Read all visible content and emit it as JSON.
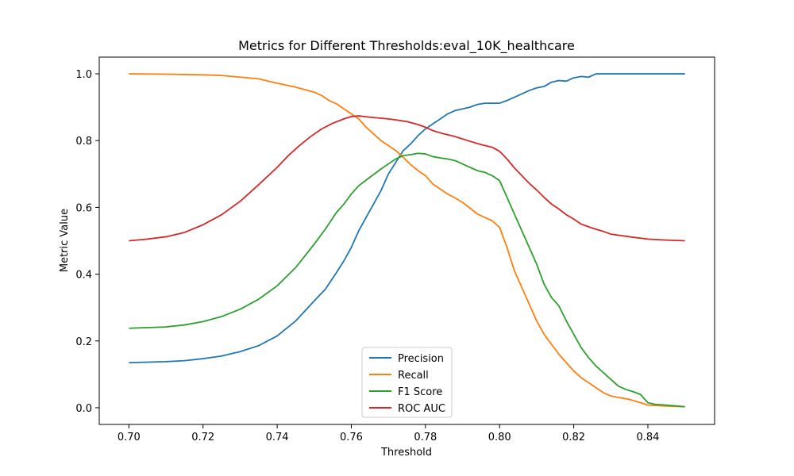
{
  "chart_data": {
    "type": "line",
    "title": "Metrics for Different Thresholds:eval_10K_healthcare",
    "xlabel": "Threshold",
    "ylabel": "Metric Value",
    "xlim": [
      0.692,
      0.858
    ],
    "ylim": [
      -0.05,
      1.05
    ],
    "xticks": [
      0.7,
      0.72,
      0.74,
      0.76,
      0.78,
      0.8,
      0.82,
      0.84
    ],
    "xtick_labels": [
      "0.70",
      "0.72",
      "0.74",
      "0.76",
      "0.78",
      "0.80",
      "0.82",
      "0.84"
    ],
    "yticks": [
      0.0,
      0.2,
      0.4,
      0.6,
      0.8,
      1.0
    ],
    "ytick_labels": [
      "0.0",
      "0.2",
      "0.4",
      "0.6",
      "0.8",
      "1.0"
    ],
    "grid": false,
    "legend_position": "bottom-center",
    "series": [
      {
        "name": "Precision",
        "color": "#1f77b4",
        "points": [
          [
            0.7,
            0.135
          ],
          [
            0.71,
            0.138
          ],
          [
            0.715,
            0.141
          ],
          [
            0.72,
            0.147
          ],
          [
            0.725,
            0.155
          ],
          [
            0.73,
            0.168
          ],
          [
            0.735,
            0.186
          ],
          [
            0.74,
            0.215
          ],
          [
            0.745,
            0.26
          ],
          [
            0.75,
            0.32
          ],
          [
            0.753,
            0.355
          ],
          [
            0.756,
            0.405
          ],
          [
            0.758,
            0.44
          ],
          [
            0.76,
            0.48
          ],
          [
            0.762,
            0.53
          ],
          [
            0.765,
            0.59
          ],
          [
            0.768,
            0.65
          ],
          [
            0.77,
            0.7
          ],
          [
            0.772,
            0.735
          ],
          [
            0.774,
            0.77
          ],
          [
            0.776,
            0.79
          ],
          [
            0.778,
            0.815
          ],
          [
            0.78,
            0.835
          ],
          [
            0.782,
            0.85
          ],
          [
            0.784,
            0.865
          ],
          [
            0.786,
            0.88
          ],
          [
            0.788,
            0.89
          ],
          [
            0.79,
            0.895
          ],
          [
            0.792,
            0.9
          ],
          [
            0.794,
            0.908
          ],
          [
            0.796,
            0.912
          ],
          [
            0.798,
            0.912
          ],
          [
            0.8,
            0.912
          ],
          [
            0.802,
            0.92
          ],
          [
            0.804,
            0.93
          ],
          [
            0.806,
            0.94
          ],
          [
            0.808,
            0.95
          ],
          [
            0.81,
            0.958
          ],
          [
            0.812,
            0.962
          ],
          [
            0.814,
            0.975
          ],
          [
            0.816,
            0.98
          ],
          [
            0.818,
            0.978
          ],
          [
            0.82,
            0.988
          ],
          [
            0.822,
            0.992
          ],
          [
            0.824,
            0.99
          ],
          [
            0.826,
            1.0
          ],
          [
            0.83,
            1.0
          ],
          [
            0.84,
            1.0
          ],
          [
            0.85,
            1.0
          ]
        ]
      },
      {
        "name": "Recall",
        "color": "#ff7f0e",
        "points": [
          [
            0.7,
            1.0
          ],
          [
            0.71,
            0.999
          ],
          [
            0.72,
            0.997
          ],
          [
            0.725,
            0.995
          ],
          [
            0.73,
            0.99
          ],
          [
            0.735,
            0.985
          ],
          [
            0.74,
            0.972
          ],
          [
            0.745,
            0.96
          ],
          [
            0.75,
            0.945
          ],
          [
            0.752,
            0.935
          ],
          [
            0.754,
            0.92
          ],
          [
            0.756,
            0.91
          ],
          [
            0.758,
            0.895
          ],
          [
            0.76,
            0.88
          ],
          [
            0.762,
            0.865
          ],
          [
            0.764,
            0.84
          ],
          [
            0.766,
            0.82
          ],
          [
            0.768,
            0.8
          ],
          [
            0.77,
            0.785
          ],
          [
            0.772,
            0.77
          ],
          [
            0.774,
            0.75
          ],
          [
            0.776,
            0.728
          ],
          [
            0.778,
            0.71
          ],
          [
            0.78,
            0.695
          ],
          [
            0.782,
            0.67
          ],
          [
            0.784,
            0.655
          ],
          [
            0.786,
            0.64
          ],
          [
            0.788,
            0.628
          ],
          [
            0.79,
            0.615
          ],
          [
            0.792,
            0.598
          ],
          [
            0.794,
            0.58
          ],
          [
            0.796,
            0.57
          ],
          [
            0.798,
            0.56
          ],
          [
            0.8,
            0.54
          ],
          [
            0.802,
            0.48
          ],
          [
            0.804,
            0.41
          ],
          [
            0.806,
            0.36
          ],
          [
            0.808,
            0.31
          ],
          [
            0.81,
            0.26
          ],
          [
            0.812,
            0.22
          ],
          [
            0.814,
            0.19
          ],
          [
            0.816,
            0.16
          ],
          [
            0.818,
            0.135
          ],
          [
            0.82,
            0.11
          ],
          [
            0.822,
            0.09
          ],
          [
            0.824,
            0.075
          ],
          [
            0.826,
            0.06
          ],
          [
            0.828,
            0.045
          ],
          [
            0.83,
            0.035
          ],
          [
            0.835,
            0.025
          ],
          [
            0.838,
            0.015
          ],
          [
            0.84,
            0.008
          ],
          [
            0.845,
            0.005
          ],
          [
            0.85,
            0.003
          ]
        ]
      },
      {
        "name": "F1 Score",
        "color": "#2ca02c",
        "points": [
          [
            0.7,
            0.238
          ],
          [
            0.71,
            0.242
          ],
          [
            0.715,
            0.248
          ],
          [
            0.72,
            0.258
          ],
          [
            0.725,
            0.273
          ],
          [
            0.73,
            0.295
          ],
          [
            0.735,
            0.325
          ],
          [
            0.74,
            0.365
          ],
          [
            0.745,
            0.42
          ],
          [
            0.75,
            0.49
          ],
          [
            0.753,
            0.535
          ],
          [
            0.756,
            0.585
          ],
          [
            0.758,
            0.61
          ],
          [
            0.76,
            0.64
          ],
          [
            0.762,
            0.665
          ],
          [
            0.765,
            0.69
          ],
          [
            0.768,
            0.715
          ],
          [
            0.77,
            0.73
          ],
          [
            0.772,
            0.745
          ],
          [
            0.774,
            0.755
          ],
          [
            0.776,
            0.758
          ],
          [
            0.778,
            0.762
          ],
          [
            0.78,
            0.76
          ],
          [
            0.782,
            0.752
          ],
          [
            0.784,
            0.748
          ],
          [
            0.786,
            0.745
          ],
          [
            0.788,
            0.74
          ],
          [
            0.79,
            0.73
          ],
          [
            0.792,
            0.72
          ],
          [
            0.794,
            0.71
          ],
          [
            0.796,
            0.705
          ],
          [
            0.798,
            0.695
          ],
          [
            0.8,
            0.68
          ],
          [
            0.802,
            0.63
          ],
          [
            0.804,
            0.58
          ],
          [
            0.806,
            0.53
          ],
          [
            0.808,
            0.48
          ],
          [
            0.81,
            0.43
          ],
          [
            0.812,
            0.37
          ],
          [
            0.814,
            0.33
          ],
          [
            0.816,
            0.305
          ],
          [
            0.818,
            0.26
          ],
          [
            0.82,
            0.22
          ],
          [
            0.822,
            0.18
          ],
          [
            0.824,
            0.15
          ],
          [
            0.826,
            0.125
          ],
          [
            0.828,
            0.105
          ],
          [
            0.83,
            0.085
          ],
          [
            0.832,
            0.065
          ],
          [
            0.834,
            0.055
          ],
          [
            0.836,
            0.048
          ],
          [
            0.838,
            0.04
          ],
          [
            0.84,
            0.015
          ],
          [
            0.842,
            0.01
          ],
          [
            0.845,
            0.008
          ],
          [
            0.85,
            0.003
          ]
        ]
      },
      {
        "name": "ROC AUC",
        "color": "#d62728",
        "points": [
          [
            0.7,
            0.5
          ],
          [
            0.705,
            0.505
          ],
          [
            0.71,
            0.512
          ],
          [
            0.715,
            0.525
          ],
          [
            0.72,
            0.548
          ],
          [
            0.725,
            0.578
          ],
          [
            0.73,
            0.618
          ],
          [
            0.735,
            0.668
          ],
          [
            0.74,
            0.72
          ],
          [
            0.743,
            0.755
          ],
          [
            0.746,
            0.785
          ],
          [
            0.749,
            0.812
          ],
          [
            0.752,
            0.835
          ],
          [
            0.755,
            0.852
          ],
          [
            0.758,
            0.865
          ],
          [
            0.76,
            0.872
          ],
          [
            0.762,
            0.874
          ],
          [
            0.765,
            0.87
          ],
          [
            0.768,
            0.867
          ],
          [
            0.77,
            0.865
          ],
          [
            0.772,
            0.862
          ],
          [
            0.775,
            0.857
          ],
          [
            0.778,
            0.848
          ],
          [
            0.78,
            0.84
          ],
          [
            0.782,
            0.83
          ],
          [
            0.785,
            0.82
          ],
          [
            0.788,
            0.812
          ],
          [
            0.79,
            0.805
          ],
          [
            0.792,
            0.798
          ],
          [
            0.795,
            0.788
          ],
          [
            0.798,
            0.78
          ],
          [
            0.8,
            0.768
          ],
          [
            0.802,
            0.745
          ],
          [
            0.804,
            0.718
          ],
          [
            0.806,
            0.695
          ],
          [
            0.808,
            0.672
          ],
          [
            0.81,
            0.652
          ],
          [
            0.812,
            0.63
          ],
          [
            0.814,
            0.61
          ],
          [
            0.816,
            0.595
          ],
          [
            0.818,
            0.578
          ],
          [
            0.82,
            0.565
          ],
          [
            0.822,
            0.55
          ],
          [
            0.825,
            0.538
          ],
          [
            0.828,
            0.528
          ],
          [
            0.83,
            0.52
          ],
          [
            0.835,
            0.512
          ],
          [
            0.84,
            0.505
          ],
          [
            0.845,
            0.502
          ],
          [
            0.85,
            0.5
          ]
        ]
      }
    ]
  }
}
